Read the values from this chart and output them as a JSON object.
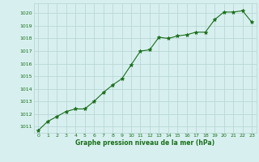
{
  "x": [
    0,
    1,
    2,
    3,
    4,
    5,
    6,
    7,
    8,
    9,
    10,
    11,
    12,
    13,
    14,
    15,
    16,
    17,
    18,
    19,
    20,
    21,
    22,
    23
  ],
  "y": [
    1010.7,
    1011.4,
    1011.8,
    1012.2,
    1012.4,
    1012.4,
    1013.0,
    1013.7,
    1014.3,
    1014.8,
    1015.9,
    1017.0,
    1017.1,
    1018.1,
    1018.0,
    1018.2,
    1018.3,
    1018.5,
    1018.5,
    1019.5,
    1020.1,
    1020.1,
    1020.2,
    1019.3
  ],
  "line_color": "#1a6e1a",
  "marker_color": "#1a6e1a",
  "bg_color": "#d7f0ef",
  "grid_color": "#b8d8d5",
  "xlabel": "Graphe pression niveau de la mer (hPa)",
  "xlabel_color": "#1a6e1a",
  "tick_color": "#1a6e1a",
  "ytick_labels": [
    1011,
    1012,
    1013,
    1014,
    1015,
    1016,
    1017,
    1018,
    1019,
    1020
  ],
  "ylim": [
    1010.5,
    1020.8
  ],
  "xlim": [
    -0.5,
    23.5
  ],
  "xtick_labels": [
    "0",
    "1",
    "2",
    "3",
    "4",
    "5",
    "6",
    "7",
    "8",
    "9",
    "10",
    "11",
    "12",
    "13",
    "14",
    "15",
    "16",
    "17",
    "18",
    "19",
    "20",
    "21",
    "22",
    "23"
  ]
}
